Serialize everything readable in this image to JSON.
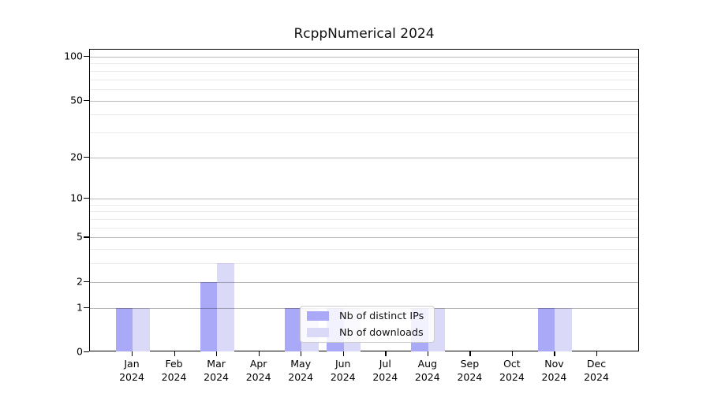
{
  "title": "RcppNumerical 2024",
  "chart_data": {
    "type": "bar",
    "title": "RcppNumerical 2024",
    "categories": [
      "Jan 2024",
      "Feb 2024",
      "Mar 2024",
      "Apr 2024",
      "May 2024",
      "Jun 2024",
      "Jul 2024",
      "Aug 2024",
      "Sep 2024",
      "Oct 2024",
      "Nov 2024",
      "Dec 2024"
    ],
    "series": [
      {
        "name": "Nb of distinct IPs",
        "color": "#a9a9f8",
        "values": [
          1,
          0,
          2,
          0,
          1,
          1,
          0,
          1,
          0,
          0,
          1,
          0
        ]
      },
      {
        "name": "Nb of downloads",
        "color": "#dadaf8",
        "values": [
          1,
          0,
          3,
          0,
          1,
          1,
          0,
          1,
          0,
          0,
          1,
          0
        ]
      }
    ],
    "xlabel": "",
    "ylabel": "",
    "y_scale": "log1p",
    "y_ticks": [
      0,
      1,
      2,
      5,
      10,
      20,
      50,
      100
    ],
    "y_minor_gridlines": [
      3,
      4,
      6,
      7,
      8,
      9,
      30,
      40,
      60,
      70,
      80,
      90
    ],
    "ylim": [
      0,
      112
    ],
    "grid": true,
    "legend_position": "lower center"
  },
  "axis": {
    "y_tick_labels": [
      "100",
      "50",
      "20",
      "10",
      "5",
      "2",
      "1",
      "0"
    ]
  },
  "legend": {
    "items": [
      {
        "label": "Nb of distinct IPs",
        "color": "#a9a9f8"
      },
      {
        "label": "Nb of downloads",
        "color": "#dadaf8"
      }
    ]
  }
}
